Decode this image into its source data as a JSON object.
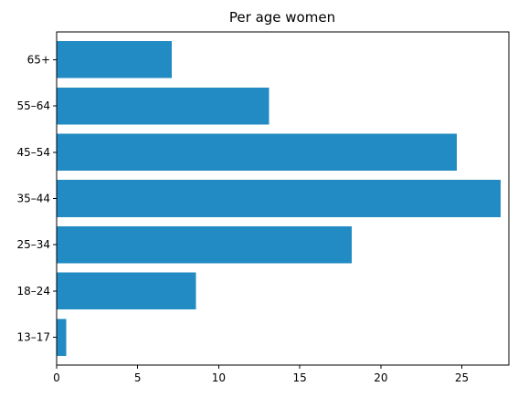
{
  "chart_data": {
    "type": "bar",
    "orientation": "horizontal",
    "title": "Per age women",
    "xlabel": "",
    "ylabel": "",
    "categories": [
      "13–17",
      "18–24",
      "25–34",
      "35–44",
      "45–54",
      "55–64",
      "65+"
    ],
    "values": [
      0.6,
      8.6,
      18.2,
      27.4,
      24.7,
      13.1,
      7.1
    ],
    "xlim": [
      0,
      27.9
    ],
    "xticks": [
      0,
      5,
      10,
      15,
      20,
      25
    ],
    "xtick_labels": [
      "0",
      "5",
      "10",
      "15",
      "20",
      "25"
    ],
    "grid": false,
    "legend": "none",
    "colors": {
      "bar": "#228bc3",
      "axis": "#000000",
      "background": "#ffffff"
    }
  }
}
